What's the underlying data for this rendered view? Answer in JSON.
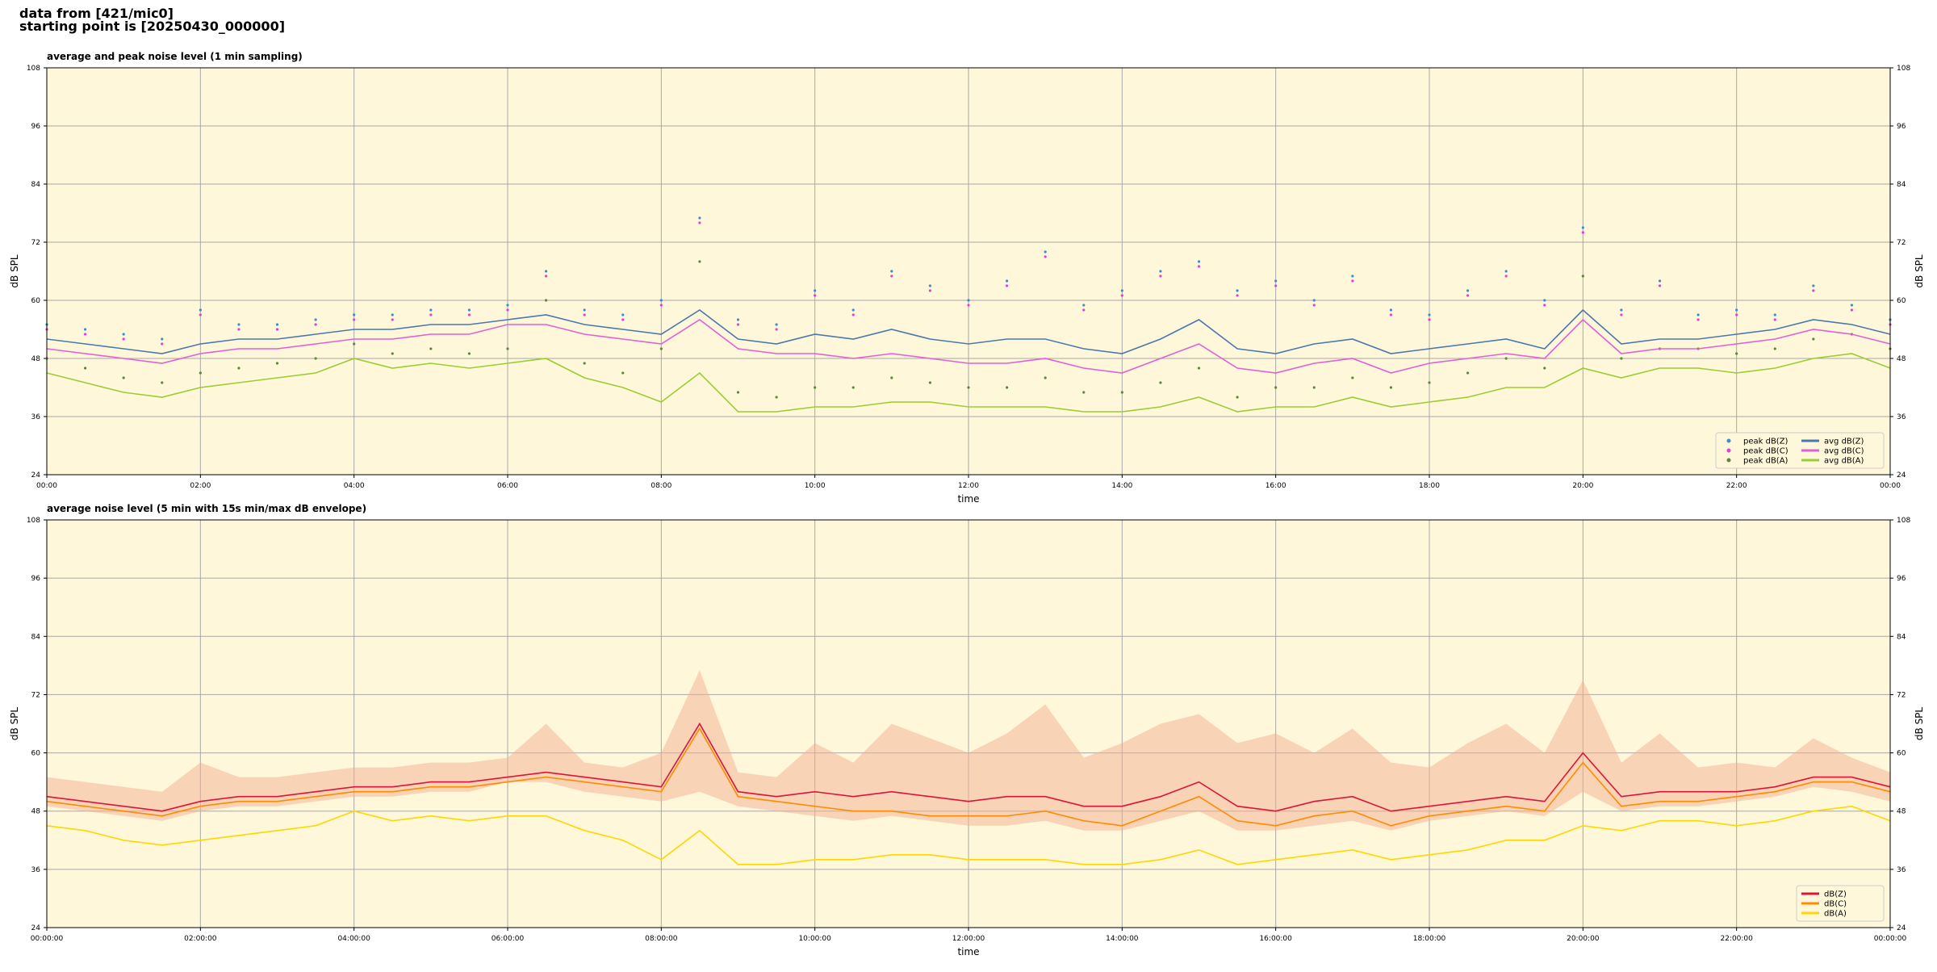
{
  "header": {
    "lines": [
      "data from [421/mic0]",
      "starting point is [20250430_000000]"
    ]
  },
  "chart_data": [
    {
      "type": "line",
      "title": "average and peak noise level (1 min sampling)",
      "xlabel": "time",
      "ylabel": "dB SPL",
      "xlim": [
        0,
        24
      ],
      "ylim": [
        24,
        108
      ],
      "yticks": [
        24,
        36,
        48,
        60,
        72,
        84,
        96,
        108
      ],
      "xticks": [
        {
          "value": 0,
          "label": "00:00"
        },
        {
          "value": 2,
          "label": "02:00"
        },
        {
          "value": 4,
          "label": "04:00"
        },
        {
          "value": 6,
          "label": "06:00"
        },
        {
          "value": 8,
          "label": "08:00"
        },
        {
          "value": 10,
          "label": "10:00"
        },
        {
          "value": 12,
          "label": "12:00"
        },
        {
          "value": 14,
          "label": "14:00"
        },
        {
          "value": 16,
          "label": "16:00"
        },
        {
          "value": 18,
          "label": "18:00"
        },
        {
          "value": 20,
          "label": "20:00"
        },
        {
          "value": 22,
          "label": "22:00"
        },
        {
          "value": 24,
          "label": "00:00"
        }
      ],
      "grid": true,
      "legend": "lower right",
      "legend_columns": 2,
      "x": [
        0,
        0.5,
        1,
        1.5,
        2,
        2.5,
        3,
        3.5,
        4,
        4.5,
        5,
        5.5,
        6,
        6.5,
        7,
        7.5,
        8,
        8.5,
        9,
        9.5,
        10,
        10.5,
        11,
        11.5,
        12,
        12.5,
        13,
        13.5,
        14,
        14.5,
        15,
        15.5,
        16,
        16.5,
        17,
        17.5,
        18,
        18.5,
        19,
        19.5,
        20,
        20.5,
        21,
        21.5,
        22,
        22.5,
        23,
        23.5,
        24
      ],
      "series": [
        {
          "name": "peak dB(Z)",
          "mode": "markers",
          "color": "#3a8fd0",
          "values": [
            55,
            54,
            53,
            52,
            58,
            55,
            55,
            56,
            57,
            57,
            58,
            58,
            59,
            66,
            58,
            57,
            60,
            77,
            56,
            55,
            62,
            58,
            66,
            63,
            60,
            64,
            70,
            59,
            62,
            66,
            68,
            62,
            64,
            60,
            65,
            58,
            57,
            62,
            66,
            60,
            75,
            58,
            64,
            57,
            58,
            57,
            63,
            59,
            56
          ]
        },
        {
          "name": "peak dB(C)",
          "mode": "markers",
          "color": "#e040e0",
          "values": [
            54,
            53,
            52,
            51,
            57,
            54,
            54,
            55,
            56,
            56,
            57,
            57,
            58,
            65,
            57,
            56,
            59,
            76,
            55,
            54,
            61,
            57,
            65,
            62,
            59,
            63,
            69,
            58,
            61,
            65,
            67,
            61,
            63,
            59,
            64,
            57,
            56,
            61,
            65,
            59,
            74,
            57,
            63,
            56,
            57,
            56,
            62,
            58,
            55
          ]
        },
        {
          "name": "peak dB(A)",
          "mode": "markers",
          "color": "#5a8a3a",
          "values": [
            48,
            46,
            44,
            43,
            45,
            46,
            47,
            48,
            51,
            49,
            50,
            49,
            50,
            60,
            47,
            45,
            50,
            68,
            41,
            40,
            42,
            42,
            44,
            43,
            42,
            42,
            44,
            41,
            41,
            43,
            46,
            40,
            42,
            42,
            44,
            42,
            43,
            45,
            48,
            46,
            65,
            48,
            50,
            50,
            49,
            50,
            52,
            53,
            50
          ]
        },
        {
          "name": "avg dB(Z)",
          "mode": "line",
          "color": "#4a78b0",
          "values": [
            52,
            51,
            50,
            49,
            51,
            52,
            52,
            53,
            54,
            54,
            55,
            55,
            56,
            57,
            55,
            54,
            53,
            58,
            52,
            51,
            53,
            52,
            54,
            52,
            51,
            52,
            52,
            50,
            49,
            52,
            56,
            50,
            49,
            51,
            52,
            49,
            50,
            51,
            52,
            50,
            58,
            51,
            52,
            52,
            53,
            54,
            56,
            55,
            53
          ]
        },
        {
          "name": "avg dB(C)",
          "mode": "line",
          "color": "#e060d8",
          "values": [
            50,
            49,
            48,
            47,
            49,
            50,
            50,
            51,
            52,
            52,
            53,
            53,
            55,
            55,
            53,
            52,
            51,
            56,
            50,
            49,
            49,
            48,
            49,
            48,
            47,
            47,
            48,
            46,
            45,
            48,
            51,
            46,
            45,
            47,
            48,
            45,
            47,
            48,
            49,
            48,
            56,
            49,
            50,
            50,
            51,
            52,
            54,
            53,
            51
          ]
        },
        {
          "name": "avg dB(A)",
          "mode": "line",
          "color": "#9acd32",
          "values": [
            45,
            43,
            41,
            40,
            42,
            43,
            44,
            45,
            48,
            46,
            47,
            46,
            47,
            48,
            44,
            42,
            39,
            45,
            37,
            37,
            38,
            38,
            39,
            39,
            38,
            38,
            38,
            37,
            37,
            38,
            40,
            37,
            38,
            38,
            40,
            38,
            39,
            40,
            42,
            42,
            46,
            44,
            46,
            46,
            45,
            46,
            48,
            49,
            46
          ]
        }
      ]
    },
    {
      "type": "line",
      "title": "average noise level (5 min with 15s min/max dB envelope)",
      "xlabel": "time",
      "ylabel": "dB SPL",
      "xlim": [
        0,
        24
      ],
      "ylim": [
        24,
        108
      ],
      "yticks": [
        24,
        36,
        48,
        60,
        72,
        84,
        96,
        108
      ],
      "xticks": [
        {
          "value": 0,
          "label": "00:00:00"
        },
        {
          "value": 2,
          "label": "02:00:00"
        },
        {
          "value": 4,
          "label": "04:00:00"
        },
        {
          "value": 6,
          "label": "06:00:00"
        },
        {
          "value": 8,
          "label": "08:00:00"
        },
        {
          "value": 10,
          "label": "10:00:00"
        },
        {
          "value": 12,
          "label": "12:00:00"
        },
        {
          "value": 14,
          "label": "14:00:00"
        },
        {
          "value": 16,
          "label": "16:00:00"
        },
        {
          "value": 18,
          "label": "18:00:00"
        },
        {
          "value": 20,
          "label": "20:00:00"
        },
        {
          "value": 22,
          "label": "22:00:00"
        },
        {
          "value": 24,
          "label": "00:00:00"
        }
      ],
      "grid": true,
      "legend": "lower right",
      "legend_columns": 1,
      "x": [
        0,
        0.5,
        1,
        1.5,
        2,
        2.5,
        3,
        3.5,
        4,
        4.5,
        5,
        5.5,
        6,
        6.5,
        7,
        7.5,
        8,
        8.5,
        9,
        9.5,
        10,
        10.5,
        11,
        11.5,
        12,
        12.5,
        13,
        13.5,
        14,
        14.5,
        15,
        15.5,
        16,
        16.5,
        17,
        17.5,
        18,
        18.5,
        19,
        19.5,
        20,
        20.5,
        21,
        21.5,
        22,
        22.5,
        23,
        23.5,
        24
      ],
      "envelope": {
        "color": "#f4b090",
        "low": [
          49,
          48,
          47,
          46,
          48,
          49,
          49,
          50,
          51,
          51,
          52,
          52,
          54,
          54,
          52,
          51,
          50,
          52,
          49,
          48,
          47,
          46,
          47,
          46,
          45,
          45,
          46,
          44,
          44,
          46,
          48,
          44,
          44,
          45,
          46,
          44,
          46,
          47,
          48,
          47,
          52,
          48,
          49,
          49,
          50,
          51,
          53,
          52,
          50
        ],
        "high": [
          55,
          54,
          53,
          52,
          58,
          55,
          55,
          56,
          57,
          57,
          58,
          58,
          59,
          66,
          58,
          57,
          60,
          77,
          56,
          55,
          62,
          58,
          66,
          63,
          60,
          64,
          70,
          59,
          62,
          66,
          68,
          62,
          64,
          60,
          65,
          58,
          57,
          62,
          66,
          60,
          75,
          58,
          64,
          57,
          58,
          57,
          63,
          59,
          56
        ]
      },
      "series": [
        {
          "name": "dB(Z)",
          "mode": "line",
          "color": "#dc143c",
          "values": [
            51,
            50,
            49,
            48,
            50,
            51,
            51,
            52,
            53,
            53,
            54,
            54,
            55,
            56,
            55,
            54,
            53,
            66,
            52,
            51,
            52,
            51,
            52,
            51,
            50,
            51,
            51,
            49,
            49,
            51,
            54,
            49,
            48,
            50,
            51,
            48,
            49,
            50,
            51,
            50,
            60,
            51,
            52,
            52,
            52,
            53,
            55,
            55,
            53
          ]
        },
        {
          "name": "dB(C)",
          "mode": "line",
          "color": "#ff8c00",
          "values": [
            50,
            49,
            48,
            47,
            49,
            50,
            50,
            51,
            52,
            52,
            53,
            53,
            54,
            55,
            54,
            53,
            52,
            65,
            51,
            50,
            49,
            48,
            48,
            47,
            47,
            47,
            48,
            46,
            45,
            48,
            51,
            46,
            45,
            47,
            48,
            45,
            47,
            48,
            49,
            48,
            58,
            49,
            50,
            50,
            51,
            52,
            54,
            54,
            52
          ]
        },
        {
          "name": "dB(A)",
          "mode": "line",
          "color": "#ffd700",
          "values": [
            45,
            44,
            42,
            41,
            42,
            43,
            44,
            45,
            48,
            46,
            47,
            46,
            47,
            47,
            44,
            42,
            38,
            44,
            37,
            37,
            38,
            38,
            39,
            39,
            38,
            38,
            38,
            37,
            37,
            38,
            40,
            37,
            38,
            39,
            40,
            38,
            39,
            40,
            42,
            42,
            45,
            44,
            46,
            46,
            45,
            46,
            48,
            49,
            46
          ]
        }
      ]
    }
  ]
}
